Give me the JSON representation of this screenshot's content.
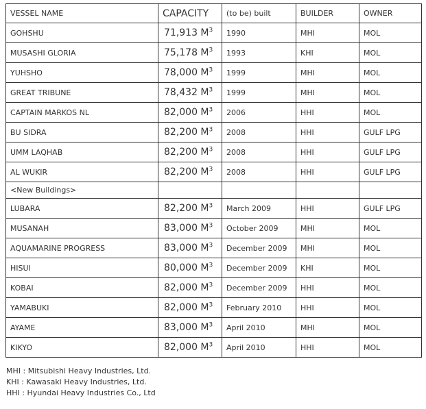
{
  "table": {
    "headers": [
      "VESSEL NAME",
      "CAPACITY",
      "(to be) built",
      "BUILDER",
      "OWNER"
    ],
    "capacity_unit": {
      "base": "M",
      "exponent": "3"
    },
    "rows": [
      {
        "name": "GOHSHU",
        "capacity": "71,913",
        "built": "1990",
        "builder": "MHI",
        "owner": "MOL"
      },
      {
        "name": "MUSASHI GLORIA",
        "capacity": "75,178",
        "built": "1993",
        "builder": "KHI",
        "owner": "MOL"
      },
      {
        "name": "YUHSHO",
        "capacity": "78,000",
        "built": "1999",
        "builder": "MHI",
        "owner": "MOL"
      },
      {
        "name": "GREAT TRIBUNE",
        "capacity": "78,432",
        "built": "1999",
        "builder": "MHI",
        "owner": "MOL"
      },
      {
        "name": "CAPTAIN MARKOS NL",
        "capacity": "82,000",
        "built": "2006",
        "builder": "HHI",
        "owner": "MOL"
      },
      {
        "name": "BU SIDRA",
        "capacity": "82,200",
        "built": "2008",
        "builder": "HHI",
        "owner": "GULF LPG"
      },
      {
        "name": "UMM LAQHAB",
        "capacity": "82,200",
        "built": "2008",
        "builder": "HHI",
        "owner": "GULF LPG"
      },
      {
        "name": "AL WUKIR",
        "capacity": "82,200",
        "built": "2008",
        "builder": "HHI",
        "owner": "GULF LPG"
      },
      {
        "type": "section",
        "name": "<New Buildings>"
      },
      {
        "name": "LUBARA",
        "capacity": "82,200",
        "built": "March 2009",
        "builder": "HHI",
        "owner": "GULF LPG"
      },
      {
        "name": "MUSANAH",
        "capacity": "83,000",
        "built": "October 2009",
        "builder": "MHI",
        "owner": "MOL"
      },
      {
        "name": "AQUAMARINE PROGRESS",
        "capacity": "83,000",
        "built": "December 2009",
        "builder": "MHI",
        "owner": "MOL"
      },
      {
        "name": "HISUI",
        "capacity": "80,000",
        "built": "December 2009",
        "builder": "KHI",
        "owner": "MOL"
      },
      {
        "name": "KOBAI",
        "capacity": "82,000",
        "built": "December 2009",
        "builder": "HHI",
        "owner": "MOL"
      },
      {
        "name": "YAMABUKI",
        "capacity": "82,000",
        "built": "February 2010",
        "builder": "HHI",
        "owner": "MOL"
      },
      {
        "name": "AYAME",
        "capacity": "83,000",
        "built": "April 2010",
        "builder": "MHI",
        "owner": "MOL"
      },
      {
        "name": "KIKYO",
        "capacity": "82,000",
        "built": "April 2010",
        "builder": "HHI",
        "owner": "MOL"
      }
    ]
  },
  "footnotes": [
    "MHI : Mitsubishi Heavy Industries, Ltd.",
    "KHI : Kawasaki Heavy Industries, Ltd.",
    "HHI : Hyundai Heavy Industries Co., Ltd"
  ],
  "colors": {
    "text": "#333333",
    "border": "#333333",
    "background": "#ffffff"
  }
}
